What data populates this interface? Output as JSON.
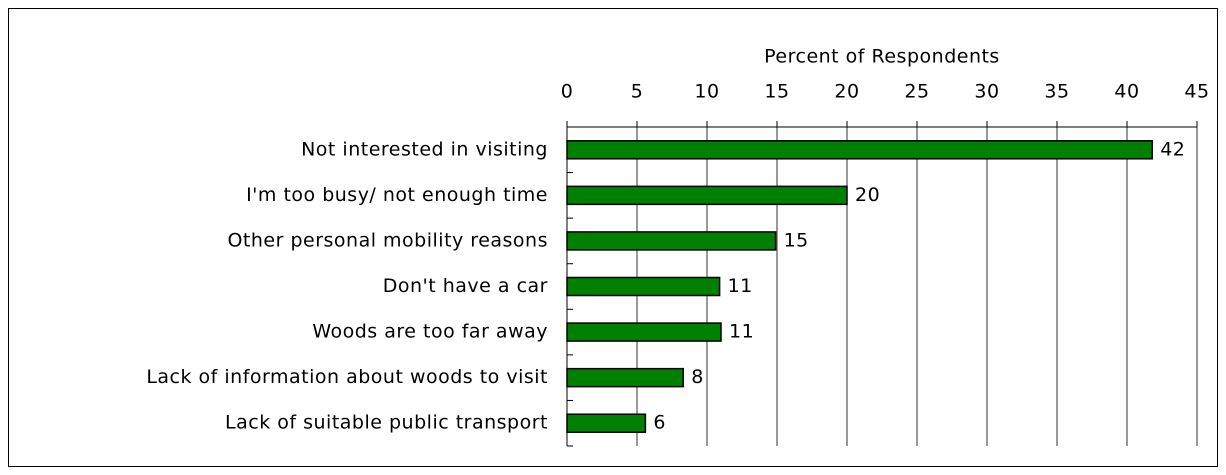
{
  "chart_data": {
    "type": "bar",
    "orientation": "horizontal",
    "x_axis_label": "Percent of Respondents",
    "categories": [
      "Not interested in visiting",
      "I'm too busy/ not enough time",
      "Other personal mobility reasons",
      "Don't have a car",
      "Woods are too far away",
      "Lack of information about woods to visit",
      "Lack of suitable public transport"
    ],
    "values": [
      41.8,
      20,
      14.9,
      10.9,
      11,
      8.3,
      5.6
    ],
    "value_labels": [
      "42",
      "20",
      "15",
      "11",
      "11",
      "8",
      "6"
    ],
    "color": "#008000",
    "xlim": [
      0,
      45
    ],
    "xticks": [
      0,
      5,
      10,
      15,
      20,
      25,
      30,
      35,
      40,
      45
    ],
    "grid": true
  }
}
